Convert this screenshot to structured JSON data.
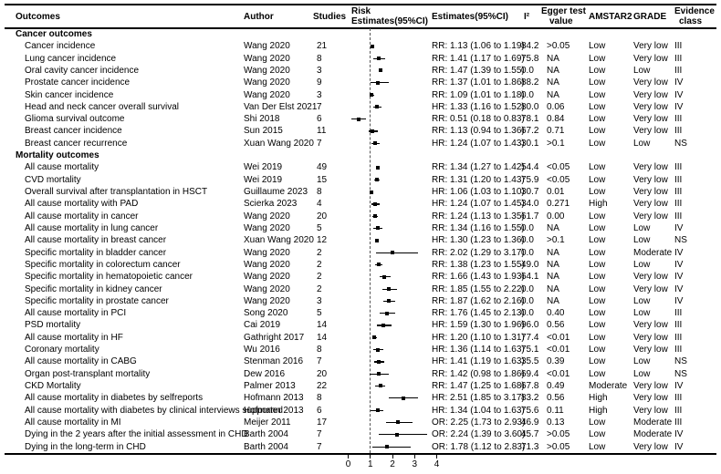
{
  "colors": {
    "text": "#000000",
    "line": "#000000",
    "background": "#ffffff",
    "reference_line": "#555555"
  },
  "columns": {
    "outcomes": "Outcomes",
    "author": "Author",
    "studies": "Studies",
    "risk_line1": "Risk",
    "risk_line2": "Estimates(95%CI)",
    "estimates": "Estimates(95%CI)",
    "i2": "I²",
    "egger_line1": "Egger test",
    "egger_line2": "value",
    "amstar2": "AMSTAR2",
    "grade": "GRADE",
    "evidence_line1": "Evidence",
    "evidence_line2": "class"
  },
  "chart_data": {
    "type": "forest",
    "title": "",
    "axis": {
      "ticks": [
        0,
        1,
        2,
        3,
        4
      ],
      "range": [
        0,
        4
      ],
      "reference_line": 1
    },
    "sections": [
      {
        "label": "Cancer outcomes",
        "rows": [
          {
            "outcome": "Cancer incidence",
            "author": "Wang 2020",
            "studies": "21",
            "measure": "RR",
            "est": 1.13,
            "lo": 1.06,
            "hi": 1.19,
            "estimate_text": "RR: 1.13 (1.06 to 1.19)",
            "i2": "84.2",
            "egger": ">0.05",
            "amstar2": "Low",
            "grade": "Very low",
            "evidence_class": "III"
          },
          {
            "outcome": "Lung cancer incidence",
            "author": "Wang 2020",
            "studies": "8",
            "measure": "RR",
            "est": 1.41,
            "lo": 1.17,
            "hi": 1.69,
            "estimate_text": "RR: 1.41 (1.17 to 1.69)",
            "i2": "75.8",
            "egger": "NA",
            "amstar2": "Low",
            "grade": "Very low",
            "evidence_class": "III"
          },
          {
            "outcome": "Oral cavity cancer incidence",
            "author": "Wang 2020",
            "studies": "3",
            "measure": "RR",
            "est": 1.47,
            "lo": 1.39,
            "hi": 1.55,
            "estimate_text": "RR: 1.47 (1.39 to 1.55)",
            "i2": "0.0",
            "egger": "NA",
            "amstar2": "Low",
            "grade": "Low",
            "evidence_class": "III"
          },
          {
            "outcome": "Prostate cancer incidence",
            "author": "Wang 2020",
            "studies": "9",
            "measure": "RR",
            "est": 1.37,
            "lo": 1.01,
            "hi": 1.86,
            "estimate_text": "RR: 1.37 (1.01 to 1.86)",
            "i2": "88.2",
            "egger": "NA",
            "amstar2": "Low",
            "grade": "Very low",
            "evidence_class": "IV"
          },
          {
            "outcome": "Skin cancer incidence",
            "author": "Wang 2020",
            "studies": "3",
            "measure": "RR",
            "est": 1.09,
            "lo": 1.01,
            "hi": 1.18,
            "estimate_text": "RR: 1.09 (1.01 to 1.18)",
            "i2": "0.0",
            "egger": "NA",
            "amstar2": "Low",
            "grade": "Very low",
            "evidence_class": "IV"
          },
          {
            "outcome": "Head and neck cancer overall survival",
            "author": "Van Der Elst 2021",
            "studies": "7",
            "measure": "HR",
            "est": 1.33,
            "lo": 1.16,
            "hi": 1.52,
            "estimate_text": "HR: 1.33 (1.16 to 1.52)",
            "i2": "80.0",
            "egger": "0.06",
            "amstar2": "Low",
            "grade": "Very low",
            "evidence_class": "IV"
          },
          {
            "outcome": "Glioma survival outcome",
            "author": "Shi 2018",
            "studies": "6",
            "measure": "RR",
            "est": 0.51,
            "lo": 0.18,
            "hi": 0.83,
            "estimate_text": "RR: 0.51 (0.18 to 0.83)",
            "i2": "78.1",
            "egger": "0.84",
            "amstar2": "Low",
            "grade": "Very low",
            "evidence_class": "III"
          },
          {
            "outcome": "Breast cancer incidence",
            "author": "Sun 2015",
            "studies": "11",
            "measure": "RR",
            "est": 1.13,
            "lo": 0.94,
            "hi": 1.36,
            "estimate_text": "RR: 1.13 (0.94 to 1.36)",
            "i2": "67.2",
            "egger": "0.71",
            "amstar2": "Low",
            "grade": "Very low",
            "evidence_class": "III"
          },
          {
            "outcome": "Breast cancer recurrence",
            "author": "Xuan Wang 2020",
            "studies": "7",
            "measure": "HR",
            "est": 1.24,
            "lo": 1.07,
            "hi": 1.43,
            "estimate_text": "HR: 1.24 (1.07 to 1.43)",
            "i2": "30.1",
            "egger": ">0.1",
            "amstar2": "Low",
            "grade": "Low",
            "evidence_class": "NS"
          }
        ]
      },
      {
        "label": "Mortality outcomes",
        "rows": [
          {
            "outcome": "All cause mortality",
            "author": "Wei 2019",
            "studies": "49",
            "measure": "RR",
            "est": 1.34,
            "lo": 1.27,
            "hi": 1.42,
            "estimate_text": "RR: 1.34 (1.27 to 1.42)",
            "i2": "54.4",
            "egger": "<0.05",
            "amstar2": "Low",
            "grade": "Very low",
            "evidence_class": "III"
          },
          {
            "outcome": "CVD mortality",
            "author": "Wei 2019",
            "studies": "15",
            "measure": "RR",
            "est": 1.31,
            "lo": 1.2,
            "hi": 1.43,
            "estimate_text": "RR: 1.31 (1.20 to 1.43)",
            "i2": "75.9",
            "egger": "<0.05",
            "amstar2": "Low",
            "grade": "Very low",
            "evidence_class": "III"
          },
          {
            "outcome": "Overall survival after transplantation in HSCT",
            "author": "Guillaume 2023",
            "studies": "8",
            "measure": "HR",
            "est": 1.06,
            "lo": 1.03,
            "hi": 1.1,
            "estimate_text": "HR: 1.06 (1.03 to 1.10)",
            "i2": "30.7",
            "egger": "0.01",
            "amstar2": "Low",
            "grade": "Very low",
            "evidence_class": "III"
          },
          {
            "outcome": "All cause mortality with PAD",
            "author": "Scierka 2023",
            "studies": "4",
            "measure": "HR",
            "est": 1.24,
            "lo": 1.07,
            "hi": 1.45,
            "estimate_text": "HR: 1.24 (1.07 to 1.45)",
            "i2": "34.0",
            "egger": "0.271",
            "amstar2": "High",
            "grade": "Very low",
            "evidence_class": "III"
          },
          {
            "outcome": "All cause mortality in cancer",
            "author": "Wang 2020",
            "studies": "20",
            "measure": "RR",
            "est": 1.24,
            "lo": 1.13,
            "hi": 1.35,
            "estimate_text": "RR: 1.24 (1.13 to 1.35)",
            "i2": "61.7",
            "egger": "0.00",
            "amstar2": "Low",
            "grade": "Very low",
            "evidence_class": "III"
          },
          {
            "outcome": "All cause mortality in lung cancer",
            "author": "Wang 2020",
            "studies": "5",
            "measure": "RR",
            "est": 1.34,
            "lo": 1.16,
            "hi": 1.55,
            "estimate_text": "RR: 1.34 (1.16 to 1.55)",
            "i2": "0.0",
            "egger": "NA",
            "amstar2": "Low",
            "grade": "Low",
            "evidence_class": "IV"
          },
          {
            "outcome": "All cause mortality in breast cancer",
            "author": "Xuan Wang 2020",
            "studies": "12",
            "measure": "HR",
            "est": 1.3,
            "lo": 1.23,
            "hi": 1.36,
            "estimate_text": "HR: 1.30 (1.23 to 1.36)",
            "i2": "0.0",
            "egger": ">0.1",
            "amstar2": "Low",
            "grade": "Low",
            "evidence_class": "NS"
          },
          {
            "outcome": "Specific mortality in bladder cancer",
            "author": "Wang 2020",
            "studies": "2",
            "measure": "RR",
            "est": 2.02,
            "lo": 1.29,
            "hi": 3.17,
            "estimate_text": "RR: 2.02 (1.29 to 3.17)",
            "i2": "0.0",
            "egger": "NA",
            "amstar2": "Low",
            "grade": "Moderate",
            "evidence_class": "IV"
          },
          {
            "outcome": "Specific mortality in colorectum cancer",
            "author": "Wang 2020",
            "studies": "2",
            "measure": "RR",
            "est": 1.38,
            "lo": 1.23,
            "hi": 1.55,
            "estimate_text": "RR: 1.38 (1.23 to 1.55)",
            "i2": "49.0",
            "egger": "NA",
            "amstar2": "Low",
            "grade": "Low",
            "evidence_class": "IV"
          },
          {
            "outcome": "Specific mortality in hematopoietic cancer",
            "author": "Wang 2020",
            "studies": "2",
            "measure": "RR",
            "est": 1.66,
            "lo": 1.43,
            "hi": 1.93,
            "estimate_text": "RR: 1.66 (1.43 to 1.93)",
            "i2": "64.1",
            "egger": "NA",
            "amstar2": "Low",
            "grade": "Very low",
            "evidence_class": "IV"
          },
          {
            "outcome": "Specific mortality in kidney cancer",
            "author": "Wang 2020",
            "studies": "2",
            "measure": "RR",
            "est": 1.85,
            "lo": 1.55,
            "hi": 2.22,
            "estimate_text": "RR: 1.85 (1.55 to 2.22)",
            "i2": "0.0",
            "egger": "NA",
            "amstar2": "Low",
            "grade": "Very low",
            "evidence_class": "IV"
          },
          {
            "outcome": "Specific mortality in prostate cancer",
            "author": "Wang 2020",
            "studies": "3",
            "measure": "RR",
            "est": 1.87,
            "lo": 1.62,
            "hi": 2.16,
            "estimate_text": "RR: 1.87 (1.62 to 2.16)",
            "i2": "0.0",
            "egger": "NA",
            "amstar2": "Low",
            "grade": "Low",
            "evidence_class": "IV"
          },
          {
            "outcome": "All cause mortality in PCI",
            "author": "Song 2020",
            "studies": "5",
            "measure": "RR",
            "est": 1.76,
            "lo": 1.45,
            "hi": 2.13,
            "estimate_text": "RR: 1.76 (1.45 to 2.13)",
            "i2": "0.0",
            "egger": "0.40",
            "amstar2": "Low",
            "grade": "Low",
            "evidence_class": "III"
          },
          {
            "outcome": "PSD mortality",
            "author": "Cai 2019",
            "studies": "14",
            "measure": "HR",
            "est": 1.59,
            "lo": 1.3,
            "hi": 1.96,
            "estimate_text": "HR: 1.59 (1.30 to 1.96)",
            "i2": "96.0",
            "egger": "0.56",
            "amstar2": "Low",
            "grade": "Very low",
            "evidence_class": "III"
          },
          {
            "outcome": "All cause mortality in HF",
            "author": "Gathright 2017",
            "studies": "14",
            "measure": "HR",
            "est": 1.2,
            "lo": 1.1,
            "hi": 1.31,
            "estimate_text": "HR: 1.20 (1.10 to 1.31)",
            "i2": "77.4",
            "egger": "<0.01",
            "amstar2": "Low",
            "grade": "Very low",
            "evidence_class": "III"
          },
          {
            "outcome": "Coronary mortality",
            "author": "Wu 2016",
            "studies": "8",
            "measure": "HR",
            "est": 1.36,
            "lo": 1.14,
            "hi": 1.63,
            "estimate_text": "HR: 1.36 (1.14 to 1.63)",
            "i2": "75.1",
            "egger": "<0.01",
            "amstar2": "Low",
            "grade": "Very low",
            "evidence_class": "III"
          },
          {
            "outcome": "All cause mortality in CABG",
            "author": "Stenman 2016",
            "studies": "7",
            "measure": "HR",
            "est": 1.41,
            "lo": 1.19,
            "hi": 1.63,
            "estimate_text": "HR: 1.41 (1.19 to 1.63)",
            "i2": "35.5",
            "egger": "0.39",
            "amstar2": "Low",
            "grade": "Low",
            "evidence_class": "NS"
          },
          {
            "outcome": "Organ post-transplant mortality",
            "author": "Dew 2016",
            "studies": "20",
            "measure": "RR",
            "est": 1.42,
            "lo": 0.98,
            "hi": 1.86,
            "estimate_text": "RR: 1.42 (0.98 to 1.86)",
            "i2": "69.4",
            "egger": "<0.01",
            "amstar2": "Low",
            "grade": "Low",
            "evidence_class": "NS"
          },
          {
            "outcome": "CKD Mortality",
            "author": "Palmer 2013",
            "studies": "22",
            "measure": "RR",
            "est": 1.47,
            "lo": 1.25,
            "hi": 1.68,
            "estimate_text": "RR: 1.47 (1.25 to 1.68)",
            "i2": "67.8",
            "egger": "0.49",
            "amstar2": "Moderate",
            "grade": "Very low",
            "evidence_class": "IV"
          },
          {
            "outcome": "All cause mortality in diabetes by selfreports",
            "author": "Hofmann 2013",
            "studies": "8",
            "measure": "HR",
            "est": 2.51,
            "lo": 1.85,
            "hi": 3.17,
            "estimate_text": "HR: 2.51 (1.85 to 3.17)",
            "i2": "83.2",
            "egger": "0.56",
            "amstar2": "High",
            "grade": "Very low",
            "evidence_class": "III"
          },
          {
            "outcome": "All cause mortality with diabetes by clinical interviews supported",
            "author": "Hofmann 2013",
            "studies": "6",
            "measure": "HR",
            "est": 1.34,
            "lo": 1.04,
            "hi": 1.63,
            "estimate_text": "HR: 1.34 (1.04 to 1.63)",
            "i2": "75.6",
            "egger": "0.11",
            "amstar2": "High",
            "grade": "Very low",
            "evidence_class": "III"
          },
          {
            "outcome": "All cause mortality in MI",
            "author": "Meijer 2011",
            "studies": "17",
            "measure": "OR",
            "est": 2.25,
            "lo": 1.73,
            "hi": 2.93,
            "estimate_text": "OR: 2.25 (1.73 to 2.93)",
            "i2": "46.9",
            "egger": "0.13",
            "amstar2": "Low",
            "grade": "Moderate",
            "evidence_class": "III"
          },
          {
            "outcome": "Dying in the 2 years after the initial assessment in CHD",
            "author": "Barth 2004",
            "studies": "7",
            "measure": "OR",
            "est": 2.24,
            "lo": 1.39,
            "hi": 3.6,
            "estimate_text": "OR: 2.24 (1.39 to 3.60)",
            "i2": "45.7",
            "egger": ">0.05",
            "amstar2": "Low",
            "grade": "Moderate",
            "evidence_class": "IV"
          },
          {
            "outcome": "Dying in the long-term in CHD",
            "author": "Barth 2004",
            "studies": "7",
            "measure": "OR",
            "est": 1.78,
            "lo": 1.12,
            "hi": 2.83,
            "estimate_text": "OR: 1.78 (1.12 to 2.83)",
            "i2": "71.3",
            "egger": ">0.05",
            "amstar2": "Low",
            "grade": "Very low",
            "evidence_class": "IV"
          }
        ]
      }
    ]
  }
}
